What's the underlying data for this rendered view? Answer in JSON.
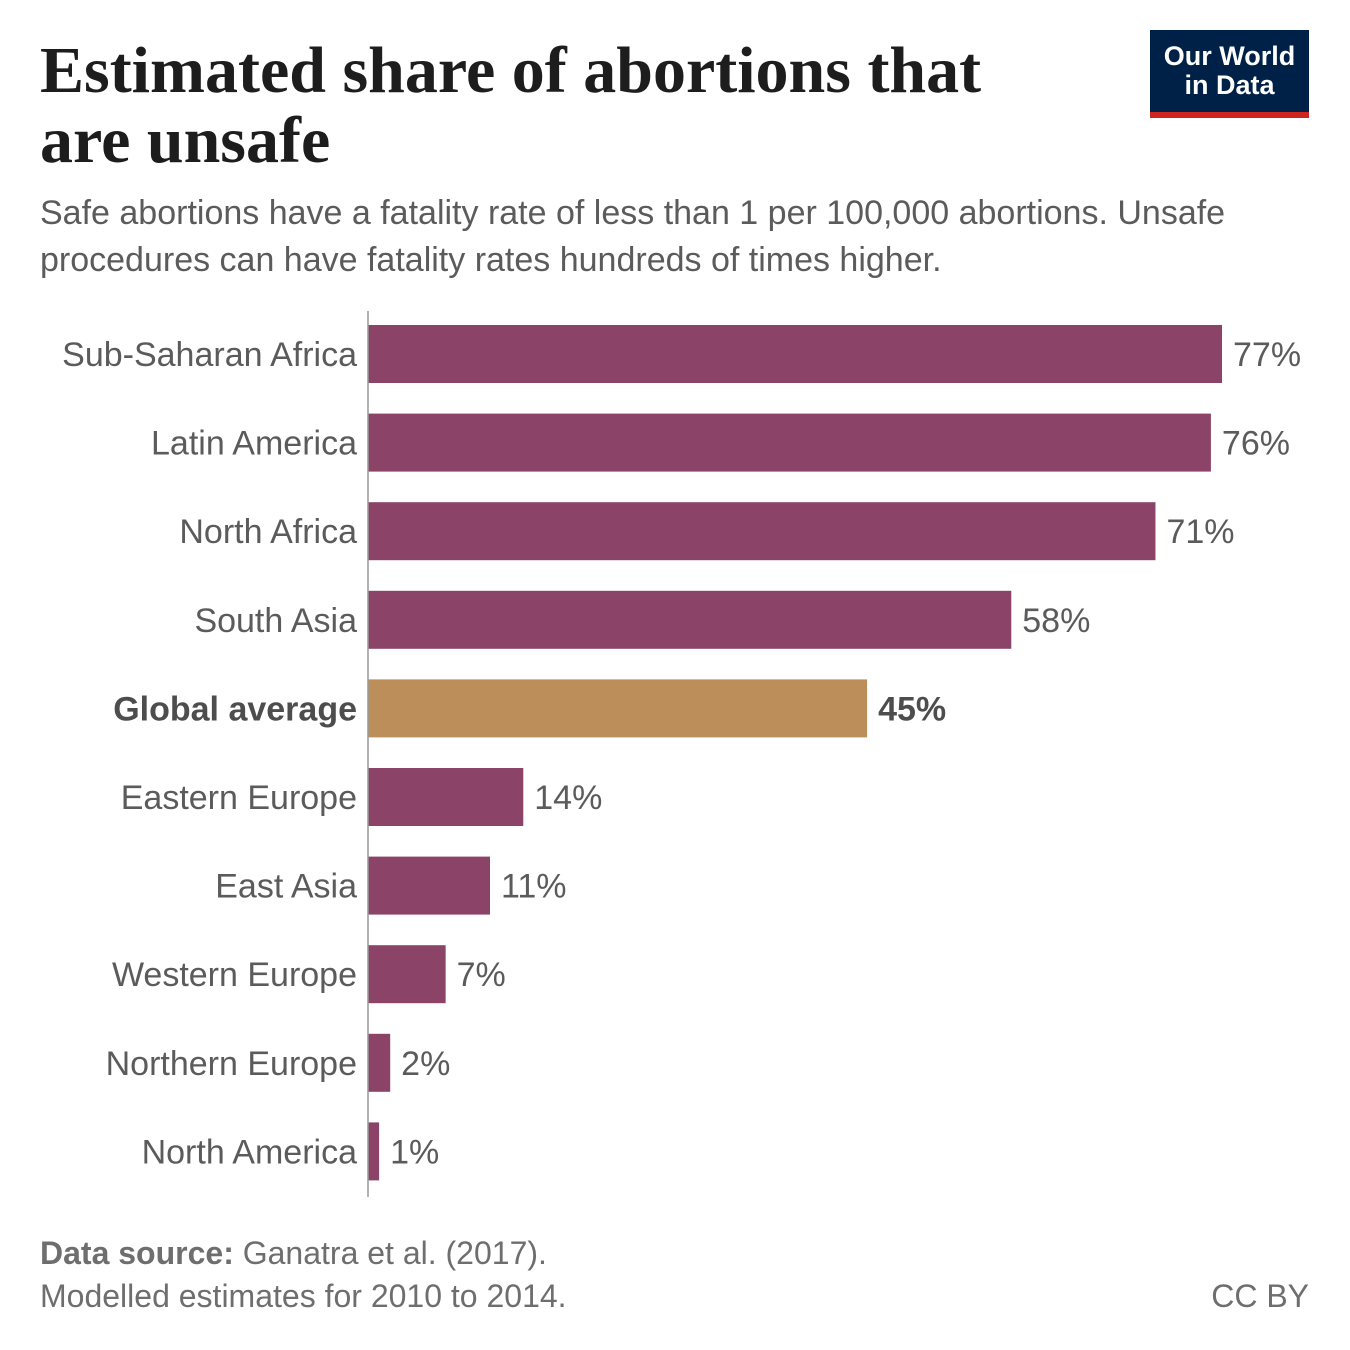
{
  "header": {
    "title": "Estimated share of abortions that are unsafe",
    "subtitle": "Safe abortions have a fatality rate of less than 1 per 100,000 abortions. Unsafe procedures can have fatality rates hundreds of times higher."
  },
  "logo": {
    "line1": "Our World",
    "line2": "in Data"
  },
  "footer": {
    "source_label": "Data source:",
    "source_text": " Ganatra et al. (2017).",
    "note": "Modelled estimates for 2010 to 2014.",
    "license": "CC BY"
  },
  "colors": {
    "bar": "#8b4467",
    "highlight": "#bc8e5a",
    "logo_bg": "#002147",
    "logo_accent": "#ce261e"
  },
  "chart_data": {
    "type": "bar",
    "orientation": "horizontal",
    "unit": "%",
    "categories": [
      "Sub-Saharan Africa",
      "Latin America",
      "North Africa",
      "South Asia",
      "Global average",
      "Eastern Europe",
      "East Asia",
      "Western Europe",
      "Northern Europe",
      "North America"
    ],
    "values": [
      77,
      76,
      71,
      58,
      45,
      14,
      11,
      7,
      2,
      1
    ],
    "data_labels": [
      "77%",
      "76%",
      "71%",
      "58%",
      "45%",
      "14%",
      "11%",
      "7%",
      "2%",
      "1%"
    ],
    "highlighted": [
      "Global average"
    ],
    "xlim": [
      0,
      77
    ],
    "grid": false,
    "legend": "none"
  }
}
